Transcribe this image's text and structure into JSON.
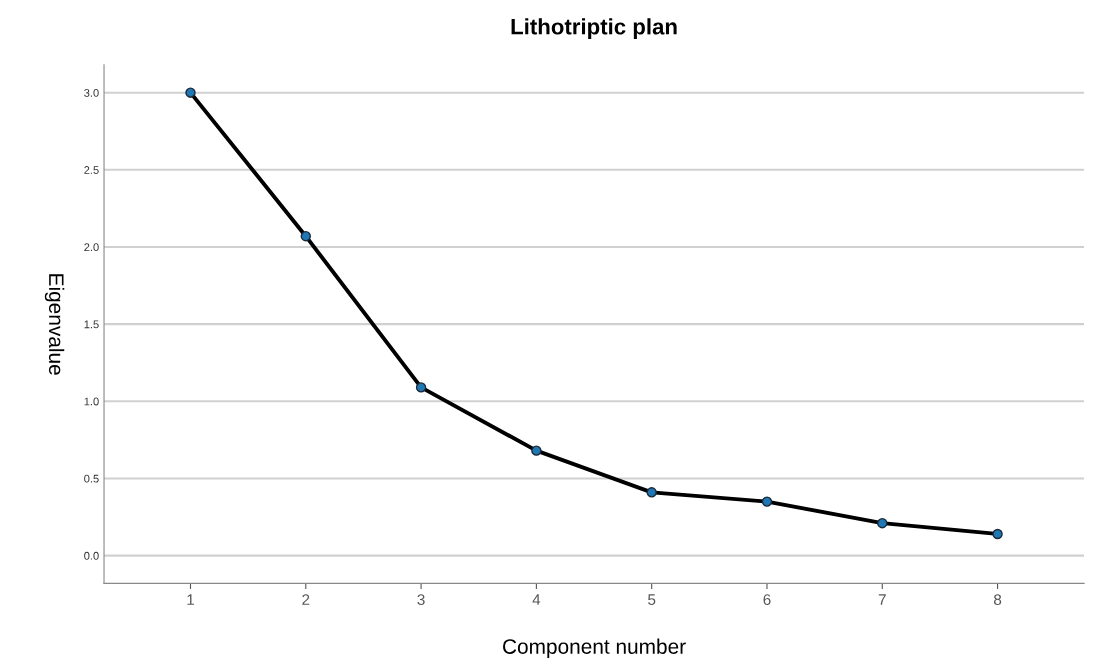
{
  "chart_data": {
    "type": "line",
    "title": "Lithotriptic plan",
    "xlabel": "Component number",
    "ylabel": "Eigenvalue",
    "categories": [
      "1",
      "2",
      "3",
      "4",
      "5",
      "6",
      "7",
      "8"
    ],
    "series": [
      {
        "color": "#1f77b4",
        "values": [
          3.0,
          2.07,
          1.09,
          0.68,
          0.41,
          0.35,
          0.21,
          0.14
        ]
      }
    ],
    "ylim": [
      -0.18,
      3.18
    ],
    "yticks": [
      {
        "value": 0,
        "label": "0.0"
      },
      {
        "value": 0.5,
        "label": "0.5"
      },
      {
        "value": 1,
        "label": "1.0"
      },
      {
        "value": 1.5,
        "label": "1.5"
      },
      {
        "value": 2,
        "label": "2.0"
      },
      {
        "value": 2.5,
        "label": "2.5"
      },
      {
        "value": 3,
        "label": "3.0"
      }
    ],
    "grid": "y",
    "marker": "circle",
    "line_style": "solid"
  }
}
